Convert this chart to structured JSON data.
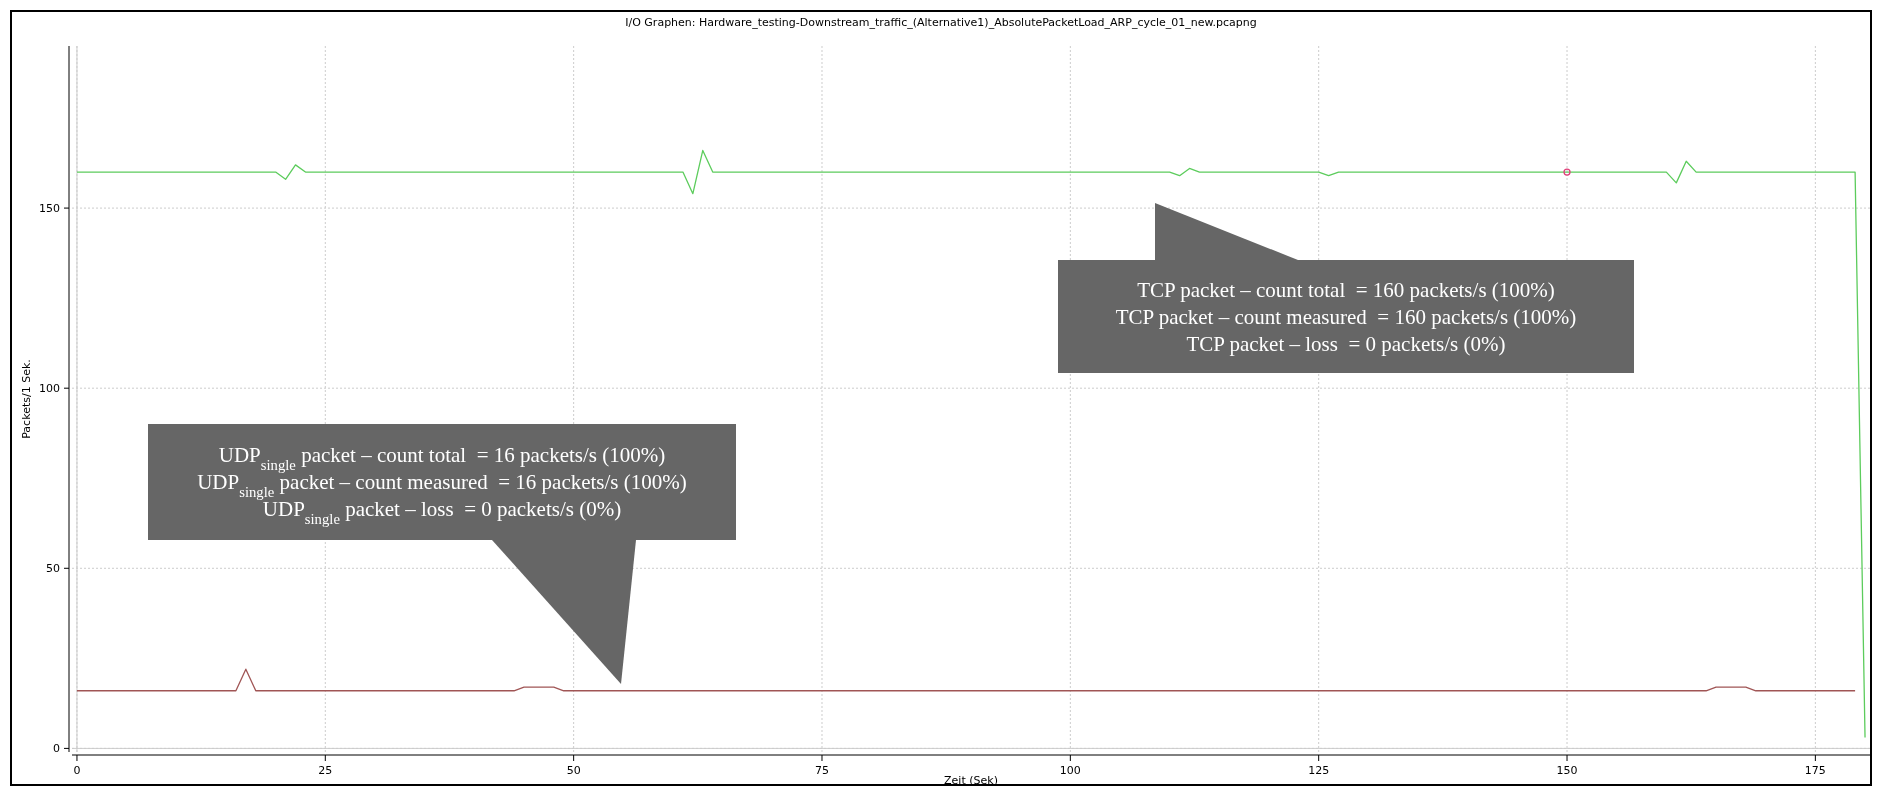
{
  "chart_data": {
    "type": "line",
    "title": "I/O Graphen: Hardware_testing-Downstream_traffic_(Alternative1)_AbsolutePacketLoad_ARP_cycle_01_new.pcapng",
    "xlabel": "Zeit (Sek)",
    "ylabel": "Packets/1 Sek.",
    "xlim": [
      -0.5,
      180.5
    ],
    "ylim": [
      -1,
      195
    ],
    "xticks": [
      0,
      25,
      50,
      75,
      100,
      125,
      150,
      175
    ],
    "yticks": [
      0,
      50,
      100,
      150
    ],
    "grid": true,
    "marker": "none",
    "line_style": "solid",
    "series": [
      {
        "color": "#5ccc5c",
        "x": [
          0,
          20,
          21,
          22,
          23,
          61,
          62,
          63,
          64,
          110,
          111,
          112,
          113,
          125,
          126,
          127,
          160,
          161,
          162,
          163,
          179,
          180
        ],
        "values": [
          160,
          160,
          158,
          162,
          160,
          160,
          154,
          166,
          160,
          160,
          159,
          161,
          160,
          160,
          159,
          160,
          160,
          157,
          163,
          160,
          160,
          3
        ]
      },
      {
        "color": "#a05555",
        "x": [
          0,
          16,
          17,
          18,
          44,
          45,
          48,
          49,
          164,
          165,
          168,
          169,
          179
        ],
        "values": [
          16,
          16,
          22,
          16,
          16,
          17,
          17,
          16,
          16,
          17,
          17,
          16,
          16
        ]
      },
      {
        "type": "scatter",
        "color": "#e0407a",
        "marker": "circle",
        "x": [
          150
        ],
        "values": [
          160
        ]
      }
    ],
    "annotations": [
      "TCP packet – count total  = 160 packets/s (100%)\nTCP packet – count measured  = 160 packets/s (100%)\nTCP packet – loss  = 0 packets/s (0%)",
      "UDP$_{single}$ packet – count total  = 16 packets/s (100%)\nUDP$_{single}$ packet – count measured  = 16 packets/s (100%)\nUDP$_{single}$ packet – loss  = 0 packets/s (0%)"
    ]
  }
}
